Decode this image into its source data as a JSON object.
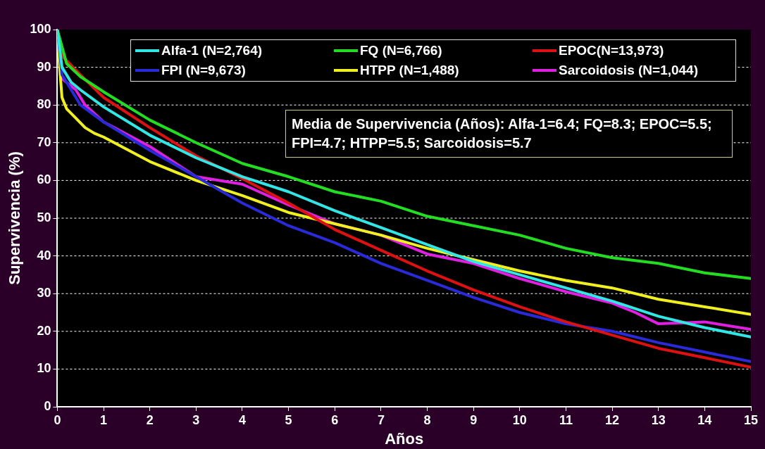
{
  "chart_data": {
    "type": "line",
    "xlabel": "Años",
    "ylabel": "Supervivencia (%)",
    "xlim": [
      0,
      15
    ],
    "xticks": [
      0,
      1,
      2,
      3,
      4,
      5,
      6,
      7,
      8,
      9,
      10,
      11,
      12,
      13,
      14,
      15
    ],
    "ylim": [
      0,
      100
    ],
    "yticks": [
      0,
      10,
      20,
      30,
      40,
      50,
      60,
      70,
      80,
      90,
      100
    ],
    "grid": "y",
    "legend": "top",
    "marker": "none",
    "line_style": "solid",
    "annotations": [
      "Media de Supervivencia (Años): Alfa-1=6.4; FQ=8.3; EPOC=5.5; FPI=4.7; HTPP=5.5; Sarcoidosis=5.7"
    ],
    "series": [
      {
        "name": "Alfa-1 (N=2,764)",
        "color": "#33e6e6",
        "x": [
          0,
          0.1,
          0.3,
          0.5,
          1,
          2,
          3,
          4,
          5,
          6,
          7,
          8,
          9,
          10,
          11,
          12,
          13,
          14,
          15
        ],
        "values": [
          100,
          90,
          86,
          84,
          79.5,
          72,
          66,
          61,
          57,
          52,
          47.5,
          43,
          38.5,
          35,
          31.5,
          28,
          24,
          21,
          18.5
        ]
      },
      {
        "name": "FQ (N=6,766)",
        "color": "#22dd22",
        "x": [
          0,
          0.2,
          0.5,
          1,
          2,
          3,
          4,
          5,
          6,
          7,
          8,
          9,
          10,
          11,
          12,
          13,
          14,
          15
        ],
        "values": [
          100,
          91,
          87.5,
          83.5,
          76,
          70,
          64.5,
          61,
          57,
          54.5,
          50.5,
          48,
          45.5,
          42,
          39.5,
          38,
          35.5,
          34
        ]
      },
      {
        "name": "EPOC(N=13,973)",
        "color": "#dd1111",
        "x": [
          0,
          0.1,
          0.5,
          1,
          2,
          3,
          4,
          5,
          6,
          7,
          8,
          9,
          10,
          11,
          12,
          13,
          14,
          15
        ],
        "values": [
          100,
          93,
          88,
          82,
          74,
          66.5,
          60.5,
          54,
          47,
          41.5,
          36,
          31,
          26.5,
          22.5,
          19,
          15.5,
          13,
          10.5
        ]
      },
      {
        "name": "FPI (N=9,673)",
        "color": "#2a2ad8",
        "x": [
          0,
          0.1,
          0.3,
          0.5,
          1,
          2,
          3,
          4,
          5,
          6,
          7,
          8,
          9,
          10,
          11,
          12,
          13,
          14,
          15
        ],
        "values": [
          100,
          88,
          84,
          80,
          75.5,
          68,
          61,
          54,
          48,
          43.5,
          38,
          33.5,
          29,
          25,
          22,
          20,
          17,
          14.5,
          12
        ]
      },
      {
        "name": "HTPP (N=1,488)",
        "color": "#f0f020",
        "x": [
          0,
          0.05,
          0.1,
          0.2,
          0.4,
          0.6,
          0.8,
          1,
          2,
          3,
          4,
          5,
          6,
          7,
          8,
          9,
          10,
          11,
          12,
          13,
          14,
          15
        ],
        "values": [
          100,
          90,
          82,
          79,
          76.5,
          74,
          72.5,
          71.5,
          65,
          60,
          56,
          51.5,
          48.5,
          45.5,
          42,
          39,
          36,
          33.5,
          31.5,
          28.5,
          26.5,
          24.5
        ]
      },
      {
        "name": "Sarcoidosis (N=1,044)",
        "color": "#e020e0",
        "x": [
          0,
          0.1,
          0.4,
          0.6,
          1,
          2,
          3,
          4,
          5,
          6,
          7,
          8,
          9,
          10,
          11,
          12,
          12.5,
          13,
          14,
          15
        ],
        "values": [
          100,
          87,
          84,
          80,
          75.5,
          69,
          61,
          59,
          53.5,
          48.5,
          45.5,
          40.5,
          38,
          34,
          30.5,
          27.5,
          25,
          22,
          22.5,
          20.5
        ]
      }
    ]
  }
}
